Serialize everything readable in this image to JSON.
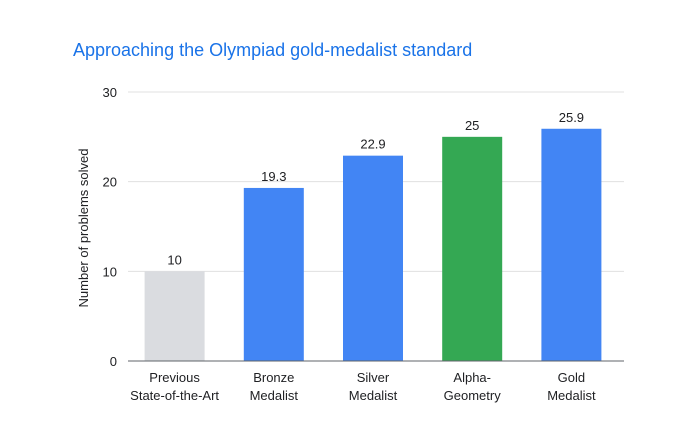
{
  "chart_data": {
    "type": "bar",
    "title": "Approaching the Olympiad gold-medalist standard",
    "ylabel": "Number of problems solved",
    "xlabel": "",
    "ylim": [
      0,
      30
    ],
    "yticks": [
      0,
      10,
      20,
      30
    ],
    "grid": true,
    "legend": "none",
    "categories": [
      [
        "Previous",
        "State-of-the-Art"
      ],
      [
        "Bronze",
        "Medalist"
      ],
      [
        "Silver",
        "Medalist"
      ],
      [
        "Alpha-",
        "Geometry"
      ],
      [
        "Gold",
        "Medalist"
      ]
    ],
    "values": [
      10,
      19.3,
      22.9,
      25,
      25.9
    ],
    "value_labels": [
      "10",
      "19.3",
      "22.9",
      "25",
      "25.9"
    ],
    "colors": [
      "#dadce0",
      "#4285f4",
      "#4285f4",
      "#34a853",
      "#4285f4"
    ],
    "title_color": "#1a73e8"
  }
}
